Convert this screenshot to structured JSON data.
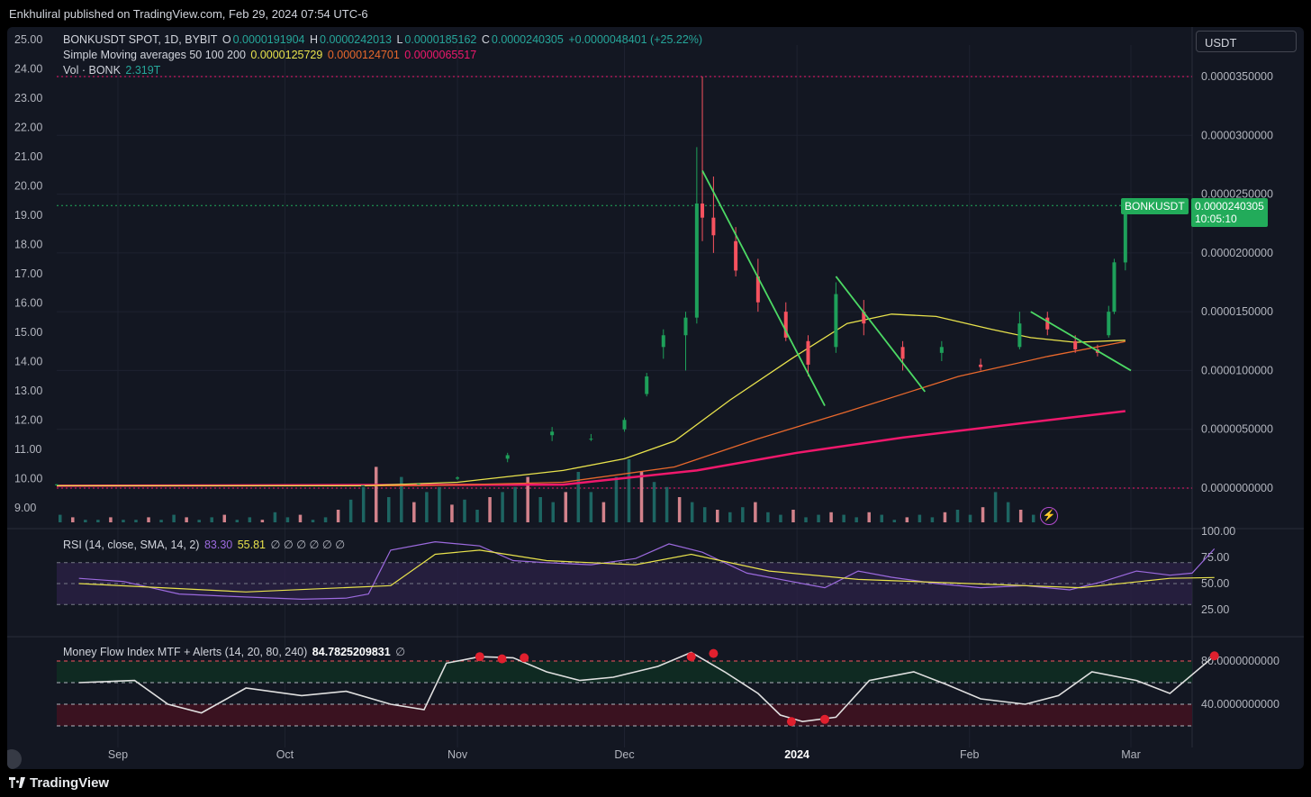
{
  "header": {
    "published": "Enkhuliral published on TradingView.com, Feb 29, 2024 07:54 UTC-6"
  },
  "footer": {
    "brand": "TradingView"
  },
  "currency_button": "USDT",
  "legend": {
    "symbol": "BONKUSDT SPOT, 1D, BYBIT",
    "open_label": "O",
    "open": "0.0000191904",
    "high_label": "H",
    "high": "0.0000242013",
    "low_label": "L",
    "low": "0.0000185162",
    "close_label": "C",
    "close": "0.0000240305",
    "change": "+0.0000048401 (+25.22%)",
    "sma_title": "Simple Moving averages 50 100 200",
    "sma50": "0.0000125729",
    "sma100": "0.0000124701",
    "sma200": "0.0000065517",
    "vol_title": "Vol · BONK",
    "vol_value": "2.319T"
  },
  "price_tag": {
    "symbol": "BONKUSDT",
    "price": "0.0000240305",
    "countdown": "10:05:10"
  },
  "rsi_legend": {
    "title": "RSI (14, close, SMA, 14, 2)",
    "rsi": "83.30",
    "sma": "55.81",
    "extras": "∅ ∅ ∅ ∅ ∅ ∅"
  },
  "mfi_legend": {
    "title": "Money Flow Index MTF + Alerts (14, 20, 80, 240)",
    "value": "84.7825209831",
    "extras": "∅"
  },
  "colors": {
    "bg": "#131722",
    "up": "#26a69a",
    "up_candle": "#1ea05a",
    "down": "#f7525f",
    "sma50": "#e8e24c",
    "sma100": "#e8682c",
    "sma200": "#f0186c",
    "rsi": "#9c6ade",
    "mfi": "#e0e0e0",
    "trend": "#4cd964"
  },
  "chart_data": {
    "type": "candlestick",
    "x_tick_labels": [
      "Sep",
      "Oct",
      "Nov",
      "Dec",
      "2024",
      "Feb",
      "Mar"
    ],
    "left_axis_labels": [
      "25.00",
      "24.00",
      "23.00",
      "22.00",
      "21.00",
      "20.00",
      "19.00",
      "18.00",
      "17.00",
      "16.00",
      "15.00",
      "14.00",
      "13.00",
      "12.00",
      "11.00",
      "10.00",
      "9.00"
    ],
    "right_axis_labels": [
      "0.0000350000",
      "0.0000300000",
      "0.0000250000",
      "0.0000200000",
      "0.0000150000",
      "0.0000100000",
      "0.0000050000",
      "0.0000000000"
    ],
    "rsi_axis_labels": [
      "100.00",
      "75.00",
      "50.00",
      "25.00"
    ],
    "mfi_axis_labels": [
      "80.0000000000",
      "40.0000000000"
    ],
    "price_series": [
      {
        "d": "Aug 21",
        "o": 3e-07,
        "h": 3.4e-07,
        "l": 2.8e-07,
        "c": 3.2e-07
      },
      {
        "d": "Oct 15",
        "o": 2e-07,
        "h": 2.4e-07,
        "l": 1.9e-07,
        "c": 2.3e-07
      },
      {
        "d": "Oct 25",
        "o": 3e-07,
        "h": 3.8e-07,
        "l": 2.8e-07,
        "c": 3.6e-07
      },
      {
        "d": "Nov 1",
        "o": 8e-07,
        "h": 1e-06,
        "l": 7e-07,
        "c": 9e-07
      },
      {
        "d": "Nov 10",
        "o": 2.5e-06,
        "h": 3e-06,
        "l": 2.2e-06,
        "c": 2.8e-06
      },
      {
        "d": "Nov 18",
        "o": 4.5e-06,
        "h": 5.2e-06,
        "l": 4e-06,
        "c": 4.8e-06
      },
      {
        "d": "Nov 25",
        "o": 4.2e-06,
        "h": 4.6e-06,
        "l": 4e-06,
        "c": 4.2e-06
      },
      {
        "d": "Dec 1",
        "o": 5e-06,
        "h": 6e-06,
        "l": 4.8e-06,
        "c": 5.8e-06
      },
      {
        "d": "Dec 5",
        "o": 8e-06,
        "h": 9.8e-06,
        "l": 7.8e-06,
        "c": 9.5e-06
      },
      {
        "d": "Dec 8",
        "o": 1.2e-05,
        "h": 1.35e-05,
        "l": 1.1e-05,
        "c": 1.3e-05
      },
      {
        "d": "Dec 12",
        "o": 1.3e-05,
        "h": 1.5e-05,
        "l": 1e-05,
        "c": 1.45e-05
      },
      {
        "d": "Dec 14",
        "o": 1.45e-05,
        "h": 2.9e-05,
        "l": 1.4e-05,
        "c": 2.42e-05
      },
      {
        "d": "Dec 15",
        "o": 2.42e-05,
        "h": 3.5e-05,
        "l": 2.1e-05,
        "c": 2.3e-05
      },
      {
        "d": "Dec 17",
        "o": 2.3e-05,
        "h": 2.65e-05,
        "l": 2e-05,
        "c": 2.15e-05
      },
      {
        "d": "Dec 21",
        "o": 2.1e-05,
        "h": 2.22e-05,
        "l": 1.8e-05,
        "c": 1.85e-05
      },
      {
        "d": "Dec 25",
        "o": 1.8e-05,
        "h": 1.95e-05,
        "l": 1.5e-05,
        "c": 1.58e-05
      },
      {
        "d": "Dec 30",
        "o": 1.5e-05,
        "h": 1.58e-05,
        "l": 1.25e-05,
        "c": 1.28e-05
      },
      {
        "d": "Jan 3",
        "o": 1.25e-05,
        "h": 1.3e-05,
        "l": 9.5e-06,
        "c": 1.05e-05
      },
      {
        "d": "Jan 8",
        "o": 1.2e-05,
        "h": 1.75e-05,
        "l": 1.15e-05,
        "c": 1.65e-05
      },
      {
        "d": "Jan 13",
        "o": 1.5e-05,
        "h": 1.6e-05,
        "l": 1.3e-05,
        "c": 1.4e-05
      },
      {
        "d": "Jan 20",
        "o": 1.2e-05,
        "h": 1.25e-05,
        "l": 1e-05,
        "c": 1.1e-05
      },
      {
        "d": "Jan 27",
        "o": 1.15e-05,
        "h": 1.25e-05,
        "l": 1.08e-05,
        "c": 1.2e-05
      },
      {
        "d": "Feb 3",
        "o": 1.05e-05,
        "h": 1.1e-05,
        "l": 1e-05,
        "c": 1.03e-05
      },
      {
        "d": "Feb 10",
        "o": 1.2e-05,
        "h": 1.5e-05,
        "l": 1.18e-05,
        "c": 1.4e-05
      },
      {
        "d": "Feb 15",
        "o": 1.45e-05,
        "h": 1.5e-05,
        "l": 1.3e-05,
        "c": 1.35e-05
      },
      {
        "d": "Feb 20",
        "o": 1.25e-05,
        "h": 1.3e-05,
        "l": 1.15e-05,
        "c": 1.18e-05
      },
      {
        "d": "Feb 24",
        "o": 1.18e-05,
        "h": 1.22e-05,
        "l": 1.12e-05,
        "c": 1.15e-05
      },
      {
        "d": "Feb 26",
        "o": 1.3e-05,
        "h": 1.55e-05,
        "l": 1.28e-05,
        "c": 1.5e-05
      },
      {
        "d": "Feb 27",
        "o": 1.5e-05,
        "h": 1.95e-05,
        "l": 1.48e-05,
        "c": 1.92e-05
      },
      {
        "d": "Feb 29",
        "o": 1.91904e-05,
        "h": 2.42013e-05,
        "l": 1.85162e-05,
        "c": 2.40305e-05
      }
    ],
    "sma50": [
      [
        "Aug 21",
        2e-07
      ],
      [
        "Oct 15",
        2e-07
      ],
      [
        "Nov 1",
        5e-07
      ],
      [
        "Nov 20",
        1.5e-06
      ],
      [
        "Dec 1",
        2.5e-06
      ],
      [
        "Dec 10",
        4e-06
      ],
      [
        "Dec 20",
        7.5e-06
      ],
      [
        "Dec 31",
        1.1e-05
      ],
      [
        "Jan 10",
        1.4e-05
      ],
      [
        "Jan 18",
        1.48e-05
      ],
      [
        "Jan 26",
        1.46e-05
      ],
      [
        "Feb 5",
        1.35e-05
      ],
      [
        "Feb 12",
        1.28e-05
      ],
      [
        "Feb 20",
        1.24e-05
      ],
      [
        "Feb 29",
        1.25729e-05
      ]
    ],
    "sma100": [
      [
        "Aug 21",
        2e-07
      ],
      [
        "Oct 25",
        2e-07
      ],
      [
        "Nov 20",
        5e-07
      ],
      [
        "Dec 10",
        1.8e-06
      ],
      [
        "Dec 25",
        4.2e-06
      ],
      [
        "Jan 10",
        6.5e-06
      ],
      [
        "Jan 30",
        9.5e-06
      ],
      [
        "Feb 15",
        1.12e-05
      ],
      [
        "Feb 29",
        1.24701e-05
      ]
    ],
    "sma200": [
      [
        "Aug 21",
        2e-07
      ],
      [
        "Nov 20",
        3e-07
      ],
      [
        "Dec 14",
        1.5e-06
      ],
      [
        "Jan 1",
        3e-06
      ],
      [
        "Jan 20",
        4.3e-06
      ],
      [
        "Feb 10",
        5.5e-06
      ],
      [
        "Feb 29",
        6.5517e-06
      ]
    ],
    "trendlines": [
      {
        "from": [
          "Dec 15",
          2.7e-05
        ],
        "to": [
          "Jan 6",
          7e-06
        ]
      },
      {
        "from": [
          "Jan 8",
          1.8e-05
        ],
        "to": [
          "Jan 24",
          8.2e-06
        ]
      },
      {
        "from": [
          "Feb 12",
          1.5e-05
        ],
        "to": [
          "Mar 1",
          1e-05
        ]
      }
    ],
    "volume": [
      3,
      2,
      1,
      1,
      2,
      1,
      1,
      2,
      1,
      3,
      2,
      1,
      2,
      3,
      1,
      2,
      1,
      4,
      2,
      3,
      1,
      2,
      5,
      9,
      14,
      22,
      10,
      18,
      8,
      12,
      14,
      7,
      9,
      5,
      10,
      12,
      14,
      18,
      10,
      8,
      12,
      20,
      12,
      8,
      18,
      25,
      20,
      16,
      14,
      10,
      8,
      6,
      5,
      4,
      6,
      8,
      4,
      3,
      5,
      2,
      3,
      4,
      3,
      2,
      4,
      3,
      1,
      2,
      3,
      2,
      4,
      5,
      3,
      6,
      12,
      8,
      5,
      3
    ],
    "rsi": [
      [
        0,
        55
      ],
      [
        8,
        52
      ],
      [
        18,
        40
      ],
      [
        26,
        38
      ],
      [
        40,
        35
      ],
      [
        48,
        36
      ],
      [
        52,
        40
      ],
      [
        56,
        82
      ],
      [
        64,
        90
      ],
      [
        72,
        86
      ],
      [
        78,
        72
      ],
      [
        84,
        70
      ],
      [
        92,
        68
      ],
      [
        100,
        74
      ],
      [
        106,
        88
      ],
      [
        112,
        80
      ],
      [
        120,
        60
      ],
      [
        128,
        52
      ],
      [
        134,
        46
      ],
      [
        140,
        62
      ],
      [
        146,
        56
      ],
      [
        154,
        50
      ],
      [
        162,
        46
      ],
      [
        170,
        48
      ],
      [
        178,
        44
      ],
      [
        184,
        52
      ],
      [
        190,
        62
      ],
      [
        196,
        58
      ],
      [
        200,
        60
      ],
      [
        204,
        83.3
      ]
    ],
    "rsi_sma": [
      [
        0,
        50
      ],
      [
        30,
        42
      ],
      [
        56,
        48
      ],
      [
        64,
        78
      ],
      [
        72,
        82
      ],
      [
        84,
        72
      ],
      [
        100,
        68
      ],
      [
        110,
        78
      ],
      [
        124,
        62
      ],
      [
        140,
        54
      ],
      [
        160,
        50
      ],
      [
        180,
        46
      ],
      [
        196,
        55
      ],
      [
        204,
        55.81
      ]
    ],
    "mfi": [
      [
        0,
        60
      ],
      [
        10,
        62
      ],
      [
        16,
        40
      ],
      [
        22,
        32
      ],
      [
        30,
        55
      ],
      [
        40,
        48
      ],
      [
        48,
        52
      ],
      [
        56,
        40
      ],
      [
        62,
        35
      ],
      [
        66,
        78
      ],
      [
        72,
        84
      ],
      [
        78,
        83
      ],
      [
        84,
        70
      ],
      [
        90,
        62
      ],
      [
        96,
        65
      ],
      [
        104,
        75
      ],
      [
        110,
        88
      ],
      [
        116,
        70
      ],
      [
        122,
        50
      ],
      [
        126,
        30
      ],
      [
        130,
        24
      ],
      [
        136,
        28
      ],
      [
        142,
        62
      ],
      [
        150,
        70
      ],
      [
        156,
        58
      ],
      [
        162,
        45
      ],
      [
        170,
        40
      ],
      [
        176,
        48
      ],
      [
        182,
        70
      ],
      [
        190,
        62
      ],
      [
        196,
        50
      ],
      [
        204,
        84.78
      ]
    ],
    "mfi_alert_points": [
      [
        72,
        84
      ],
      [
        76,
        82
      ],
      [
        80,
        83
      ],
      [
        110,
        84
      ],
      [
        114,
        87
      ],
      [
        128,
        24
      ],
      [
        134,
        26
      ],
      [
        204,
        84.78
      ]
    ]
  }
}
